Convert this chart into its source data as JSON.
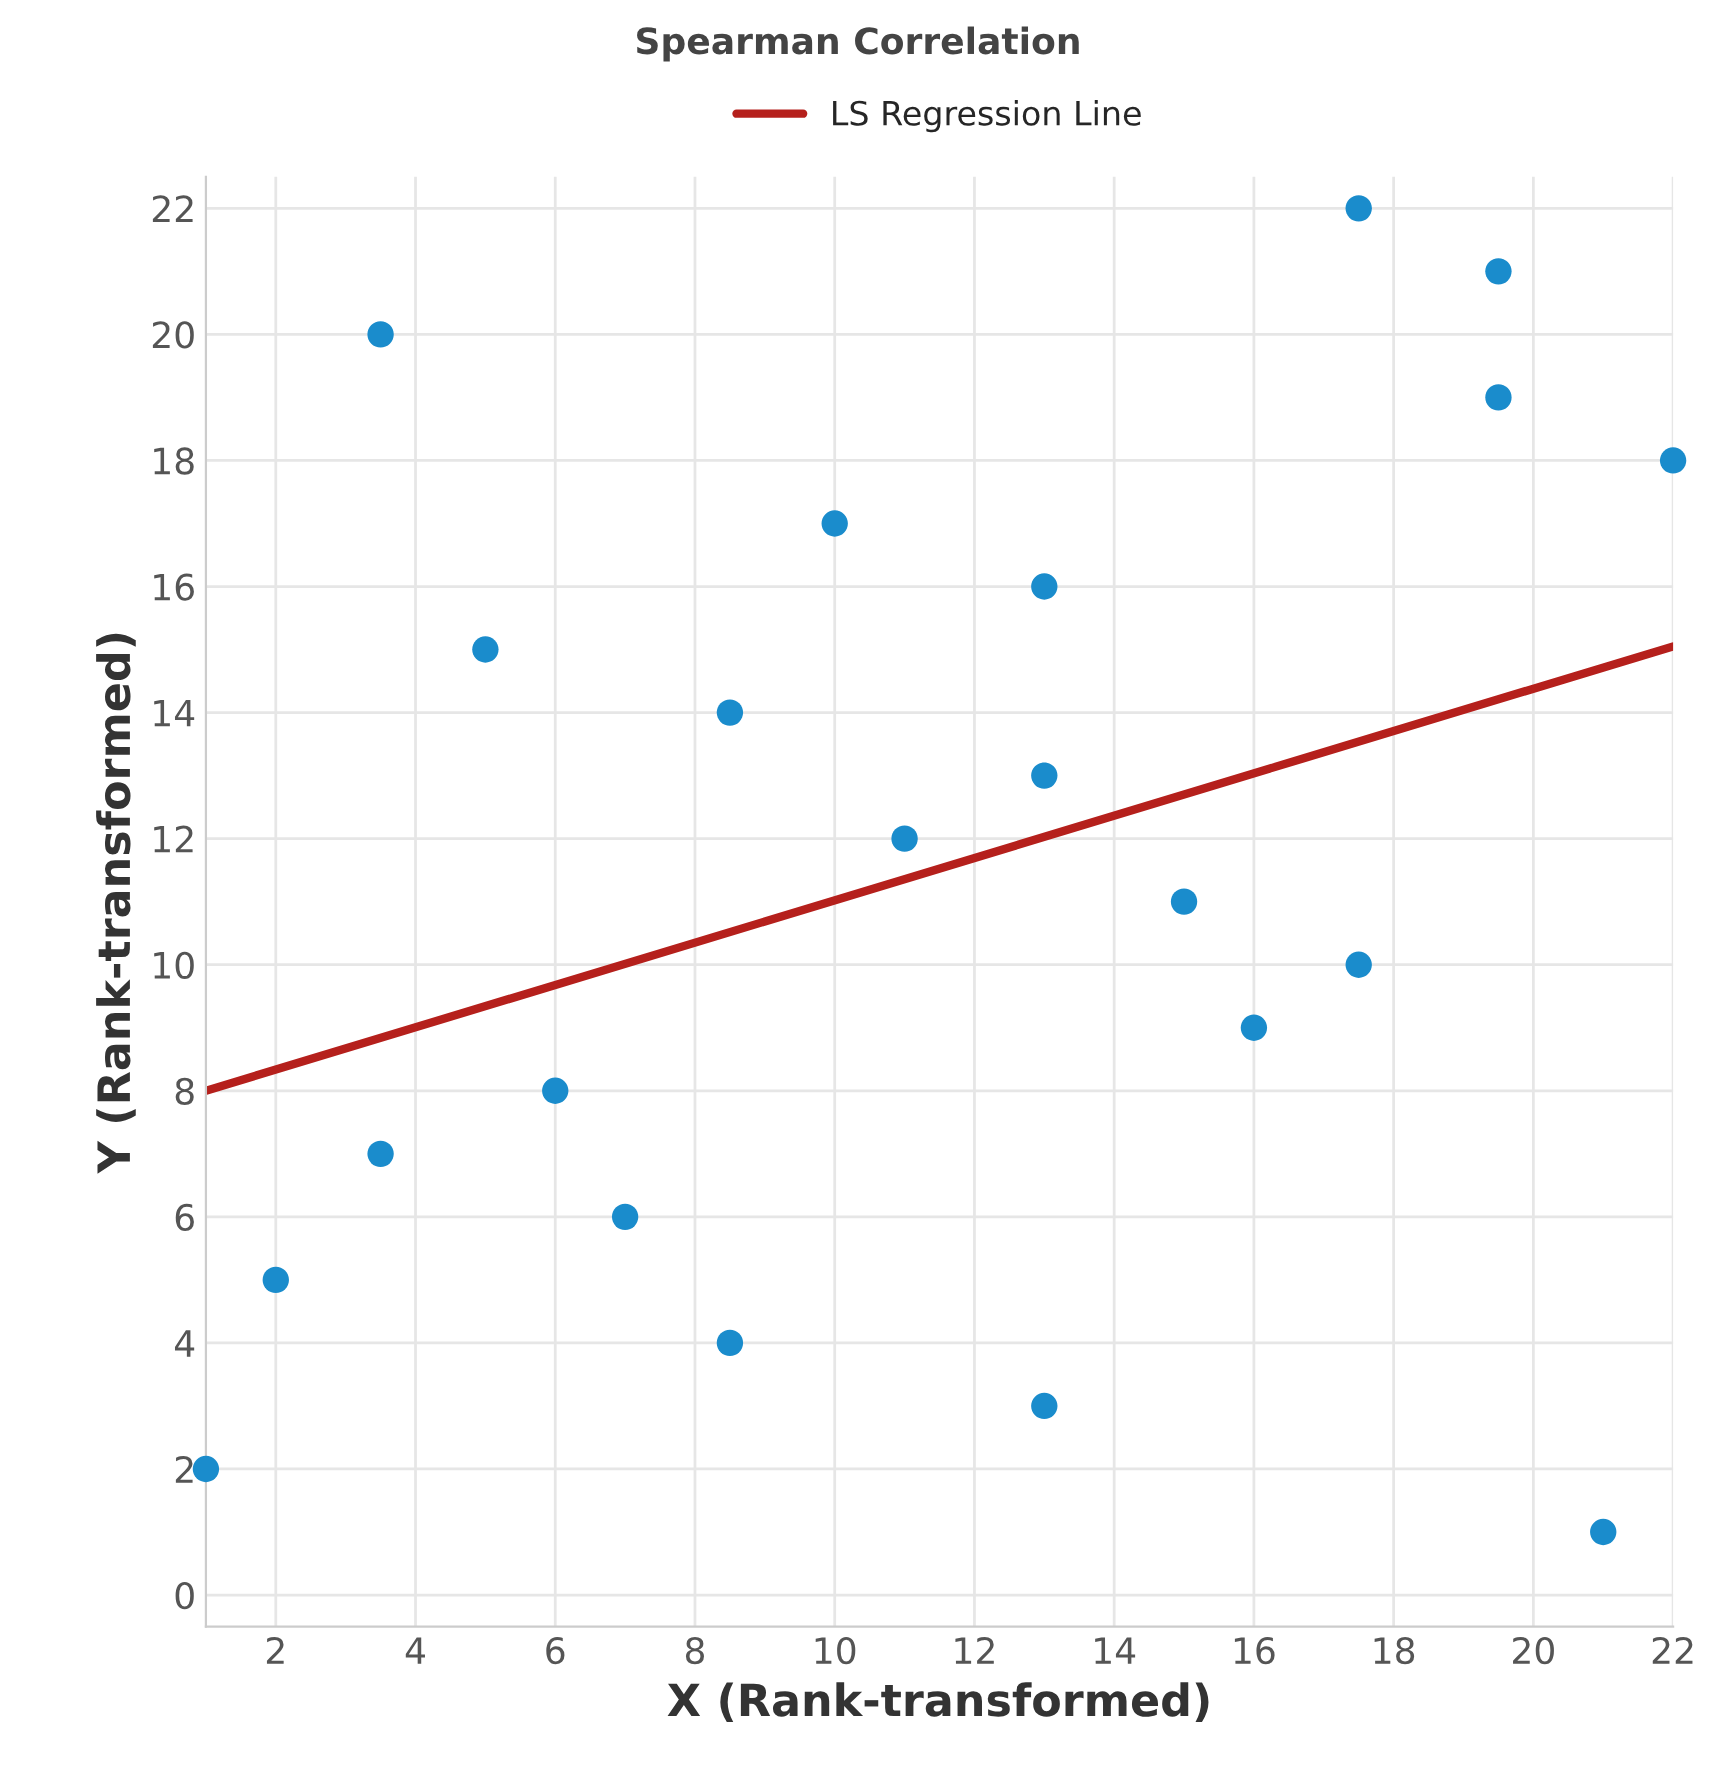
{
  "chart_data": {
    "type": "scatter",
    "title": "Spearman Correlation",
    "xlabel": "X (Rank-transformed)",
    "ylabel": "Y (Rank-transformed)",
    "series": [
      {
        "color": "#1a8ccc",
        "marker": "circle",
        "x": [
          1,
          2,
          3.5,
          3.5,
          5,
          6,
          7,
          8.5,
          8.5,
          10,
          11,
          13,
          13,
          13,
          15,
          16,
          17.5,
          17.5,
          19.5,
          19.5,
          21,
          22
        ],
        "values": [
          2,
          5,
          7,
          20,
          15,
          8,
          6,
          14,
          4,
          17,
          12,
          16,
          13,
          3,
          11,
          9,
          22,
          10,
          21,
          19,
          1,
          18
        ]
      },
      {
        "type": "line",
        "name": "LS Regression Line",
        "color": "#b5201c",
        "marker": "none",
        "line_style": "solid",
        "x": [
          1,
          22
        ],
        "values": [
          8,
          15.05
        ]
      }
    ],
    "xlim": [
      1,
      22
    ],
    "xticks": [
      2,
      4,
      6,
      8,
      10,
      12,
      14,
      16,
      18,
      20,
      22
    ],
    "ylim": [
      -0.5,
      22.5
    ],
    "yticks": [
      0,
      2,
      4,
      6,
      8,
      10,
      12,
      14,
      16,
      18,
      20,
      22
    ],
    "grid": true,
    "legend": "top"
  }
}
